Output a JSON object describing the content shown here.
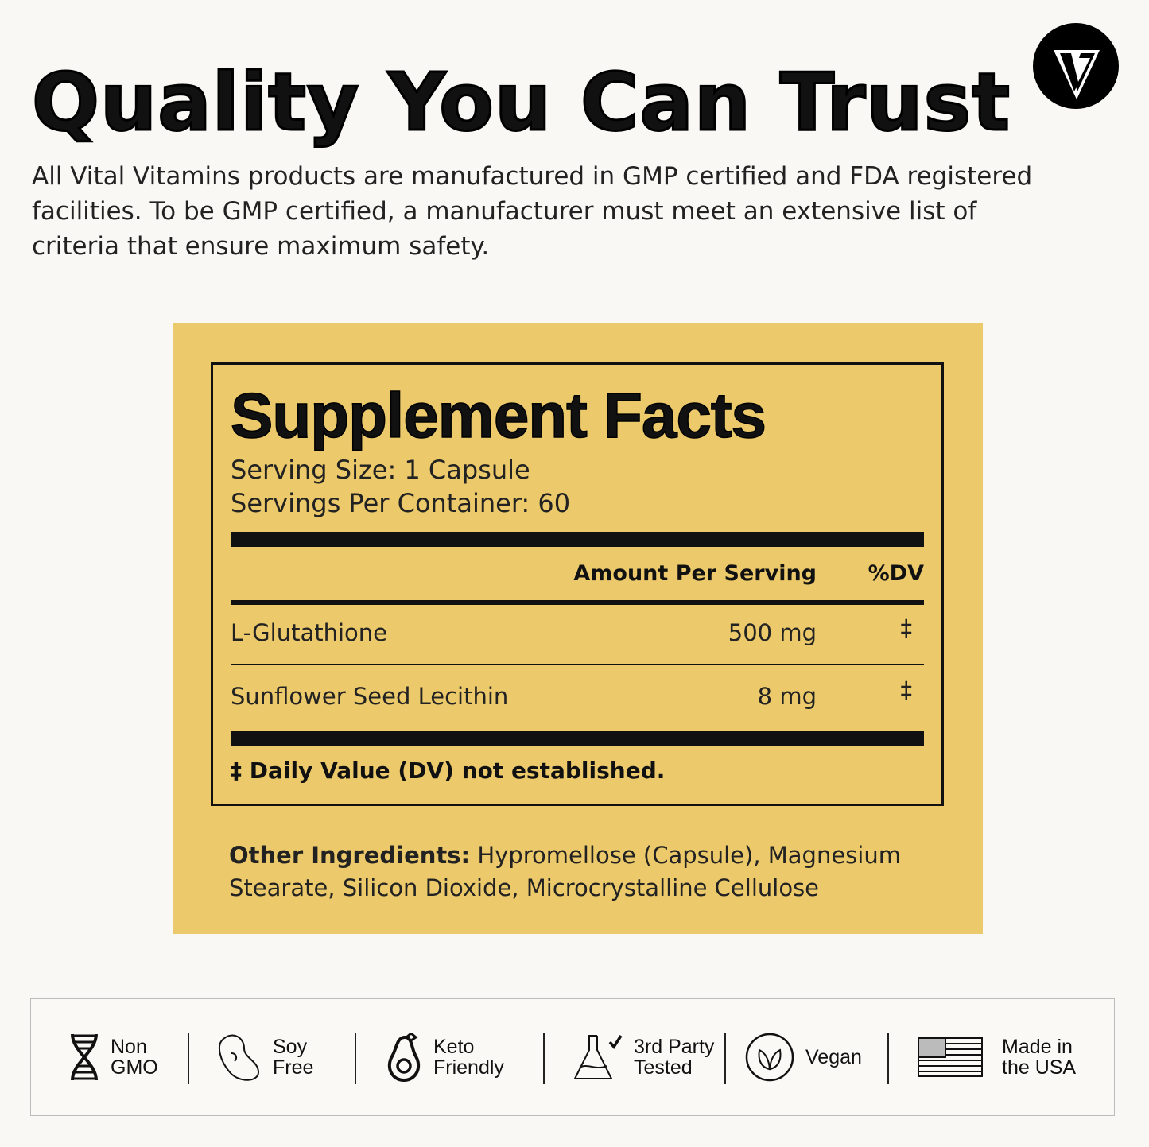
{
  "header": {
    "title": "Quality You Can Trust",
    "intro": "All Vital Vitamins products are manufactured in GMP certified and FDA registered facilities. To be GMP certified, a manufacturer must meet an extensive list of criteria that ensure maximum safety.",
    "logo": "vital-vitamins-v-logo"
  },
  "colors": {
    "background": "#f9f8f5",
    "panel": "#ecca6b",
    "ink": "#111111"
  },
  "facts": {
    "title": "Supplement Facts",
    "serving_size": "Serving Size: 1 Capsule",
    "servings_per_container": "Servings Per Container: 60",
    "col_amount": "Amount Per Serving",
    "col_dv": "%DV",
    "rows": [
      {
        "name": "L-Glutathione",
        "amount": "500 mg",
        "dv": "‡"
      },
      {
        "name": "Sunflower Seed Lecithin",
        "amount": "8 mg",
        "dv": "‡"
      }
    ],
    "footnote": "‡ Daily Value (DV) not established."
  },
  "other": {
    "label": "Other Ingredients:",
    "text": " Hypromellose (Capsule), Magnesium Stearate, Silicon Dioxide, Microcrystalline Cellulose"
  },
  "badges": [
    {
      "icon": "dna-icon",
      "l1": "Non",
      "l2": "GMO"
    },
    {
      "icon": "soybean-icon",
      "l1": "Soy",
      "l2": "Free"
    },
    {
      "icon": "avocado-icon",
      "l1": "Keto",
      "l2": "Friendly"
    },
    {
      "icon": "flask-check-icon",
      "l1": "3rd Party",
      "l2": "Tested"
    },
    {
      "icon": "leaf-icon",
      "l1": "Vegan",
      "l2": ""
    },
    {
      "icon": "us-flag-icon",
      "l1": "Made in",
      "l2": "the USA"
    }
  ]
}
